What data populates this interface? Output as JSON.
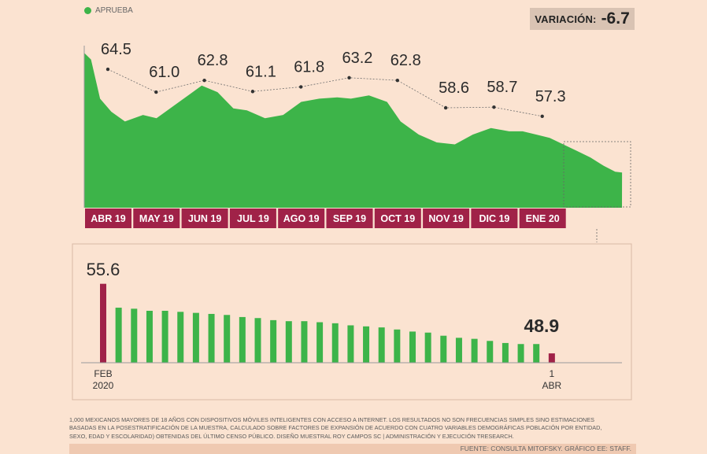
{
  "legend": {
    "label": "APRUEBA",
    "color": "#3db449"
  },
  "variation": {
    "label": "VARIACIÓN:",
    "value": "-6.7"
  },
  "colors": {
    "series": "#3db449",
    "highlight": "#a02248",
    "month_band": "#a02248",
    "background": "#fbe3d1"
  },
  "chart_data": [
    {
      "type": "area",
      "series": [
        {
          "name": "APRUEBA"
        }
      ],
      "categories": [
        "ABR 19",
        "MAY 19",
        "JUN 19",
        "JUL 19",
        "AGO 19",
        "SEP 19",
        "OCT 19",
        "NOV 19",
        "DIC 19",
        "ENE 20"
      ],
      "monthly_values": [
        64.5,
        61.0,
        62.8,
        61.1,
        61.8,
        63.2,
        62.8,
        58.6,
        58.7,
        57.3
      ],
      "daily_profile": [
        [
          0,
          67
        ],
        [
          0.15,
          66
        ],
        [
          0.35,
          60
        ],
        [
          0.6,
          58
        ],
        [
          0.9,
          56.5
        ],
        [
          1.3,
          57.5
        ],
        [
          1.6,
          57
        ],
        [
          1.9,
          58.5
        ],
        [
          2.3,
          60.5
        ],
        [
          2.6,
          62
        ],
        [
          2.95,
          61
        ],
        [
          3.3,
          58.5
        ],
        [
          3.6,
          58.2
        ],
        [
          4.0,
          57
        ],
        [
          4.4,
          57.5
        ],
        [
          4.8,
          59.5
        ],
        [
          5.2,
          60
        ],
        [
          5.6,
          60.2
        ],
        [
          5.9,
          60
        ],
        [
          6.3,
          60.5
        ],
        [
          6.7,
          59.5
        ],
        [
          7.0,
          56.5
        ],
        [
          7.4,
          54.5
        ],
        [
          7.8,
          53.3
        ],
        [
          8.2,
          53
        ],
        [
          8.6,
          54.5
        ],
        [
          9.0,
          55.5
        ],
        [
          9.4,
          55
        ],
        [
          9.7,
          55
        ],
        [
          10.0,
          54.5
        ],
        [
          10.3,
          54
        ],
        [
          10.6,
          53
        ],
        [
          10.9,
          52
        ],
        [
          11.2,
          51
        ],
        [
          11.5,
          49.7
        ],
        [
          11.75,
          48.8
        ],
        [
          11.9,
          48.7
        ]
      ],
      "highlighted_period": "FEB 2020 – 1 ABR"
    },
    {
      "type": "bar",
      "values": [
        55.6,
        53.3,
        53.2,
        53.0,
        53.0,
        52.9,
        52.8,
        52.7,
        52.6,
        52.4,
        52.3,
        52.1,
        52.0,
        52.0,
        51.9,
        51.8,
        51.6,
        51.5,
        51.4,
        51.2,
        51.0,
        50.9,
        50.6,
        50.4,
        50.3,
        50.1,
        49.9,
        49.8,
        49.8,
        48.9
      ],
      "first_value_label": "55.6",
      "last_value_label": "48.9",
      "start_label": [
        "FEB",
        "2020"
      ],
      "end_label": [
        "1",
        "ABR"
      ]
    }
  ],
  "footnote": "1,000 mexicanos mayores de 18 años con dispositivos móviles inteligentes con acceso a internet. Los resultados no son frecuencias simples sino estimaciones basadas en la posestratificación de la muestra, calculado sobre factores de expansión de acuerdo con cuatro variables demográficas población por entidad, sexo, edad y escolaridad) obtenidas del último censo público. Diseño muestral Roy Campos SC | Administración y ejecución TResearch.",
  "source": "FUENTE: CONSULTA MITOFSKY. GRÁFICO EE: STAFF."
}
